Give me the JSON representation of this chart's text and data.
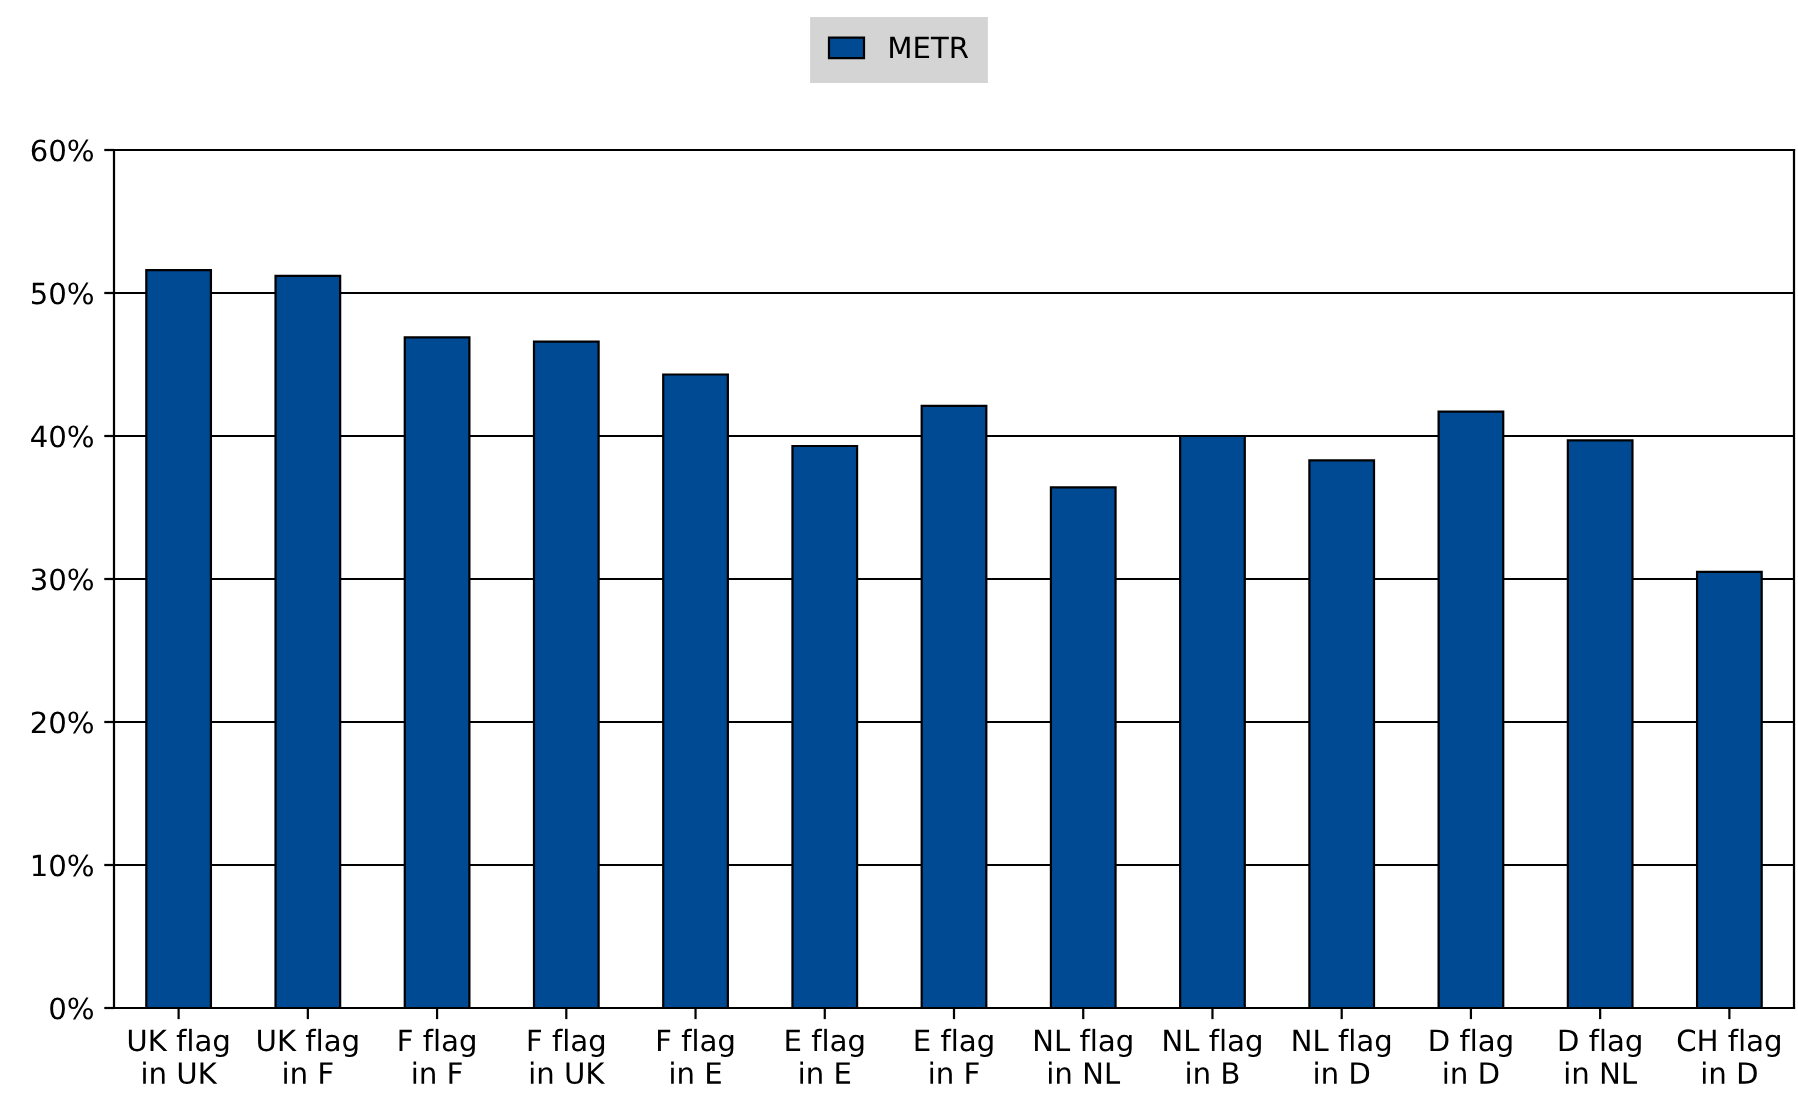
{
  "chart_data": {
    "type": "bar",
    "categories": [
      "UK flag\nin UK",
      "UK flag\nin F",
      "F flag\nin F",
      "F flag\nin UK",
      "F flag\nin E",
      "E flag\nin E",
      "E flag\nin F",
      "NL flag\nin NL",
      "NL flag\nin B",
      "NL flag\nin D",
      "D flag\nin D",
      "D flag\nin NL",
      "CH flag\nin D"
    ],
    "series": [
      {
        "name": "METR",
        "color": "#004a93",
        "values": [
          51.6,
          51.2,
          46.9,
          46.6,
          44.3,
          39.3,
          42.1,
          36.4,
          40.0,
          38.3,
          41.7,
          39.7,
          30.5
        ]
      }
    ],
    "ylim": [
      0,
      60
    ],
    "yticks": [
      {
        "value": 0,
        "label": "0%"
      },
      {
        "value": 10,
        "label": "10%"
      },
      {
        "value": 20,
        "label": "20%"
      },
      {
        "value": 30,
        "label": "30%"
      },
      {
        "value": 40,
        "label": "40%"
      },
      {
        "value": 50,
        "label": "50%"
      },
      {
        "value": 60,
        "label": "60%"
      }
    ],
    "grid": "y",
    "legend": "top"
  }
}
